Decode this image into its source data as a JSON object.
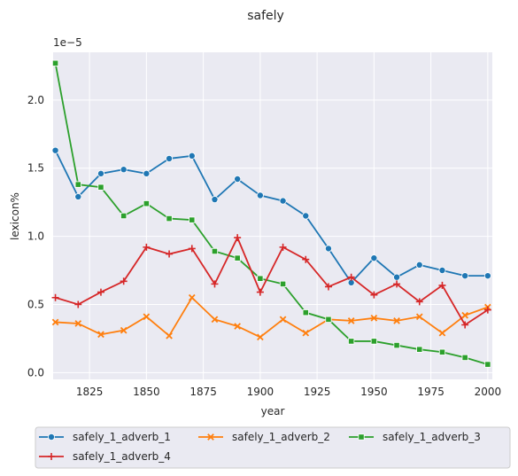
{
  "chart_data": {
    "type": "line",
    "title": "safely",
    "xlabel": "year",
    "ylabel": "lexicon%",
    "y_offset_label": "1e−5",
    "xlim": [
      1809,
      2002
    ],
    "ylim": [
      -0.05,
      2.35
    ],
    "x_ticks": [
      1825,
      1850,
      1875,
      1900,
      1925,
      1950,
      1975,
      2000
    ],
    "x_tick_labels": [
      "1825",
      "1850",
      "1875",
      "1900",
      "1925",
      "1950",
      "1975",
      "2000"
    ],
    "y_ticks": [
      0.0,
      0.5,
      1.0,
      1.5,
      2.0
    ],
    "y_tick_labels": [
      "0.0",
      "0.5",
      "1.0",
      "1.5",
      "2.0"
    ],
    "grid": true,
    "legend_placement": "bottom",
    "x": [
      1810,
      1820,
      1830,
      1840,
      1850,
      1860,
      1870,
      1880,
      1890,
      1900,
      1910,
      1920,
      1930,
      1940,
      1950,
      1960,
      1970,
      1980,
      1990,
      2000
    ],
    "series": [
      {
        "name": "safely_1_adverb_1",
        "color": "#1f77b4",
        "marker": "circle",
        "values": [
          1.63,
          1.29,
          1.46,
          1.49,
          1.46,
          1.57,
          1.59,
          1.27,
          1.42,
          1.3,
          1.26,
          1.15,
          0.91,
          0.66,
          0.84,
          0.7,
          0.79,
          0.75,
          0.71,
          0.71
        ]
      },
      {
        "name": "safely_1_adverb_2",
        "color": "#ff7f0e",
        "marker": "x",
        "values": [
          0.37,
          0.36,
          0.28,
          0.31,
          0.41,
          0.27,
          0.55,
          0.39,
          0.34,
          0.26,
          0.39,
          0.29,
          0.39,
          0.38,
          0.4,
          0.38,
          0.41,
          0.29,
          0.42,
          0.48
        ]
      },
      {
        "name": "safely_1_adverb_3",
        "color": "#2ca02c",
        "marker": "square",
        "values": [
          2.27,
          1.38,
          1.36,
          1.15,
          1.24,
          1.13,
          1.12,
          0.89,
          0.84,
          0.69,
          0.65,
          0.44,
          0.39,
          0.23,
          0.23,
          0.2,
          0.17,
          0.15,
          0.11,
          0.06
        ]
      },
      {
        "name": "safely_1_adverb_4",
        "color": "#d62728",
        "marker": "plus",
        "values": [
          0.55,
          0.5,
          0.59,
          0.67,
          0.92,
          0.87,
          0.91,
          0.65,
          0.99,
          0.59,
          0.92,
          0.83,
          0.63,
          0.7,
          0.57,
          0.65,
          0.52,
          0.64,
          0.35,
          0.46
        ]
      }
    ]
  }
}
